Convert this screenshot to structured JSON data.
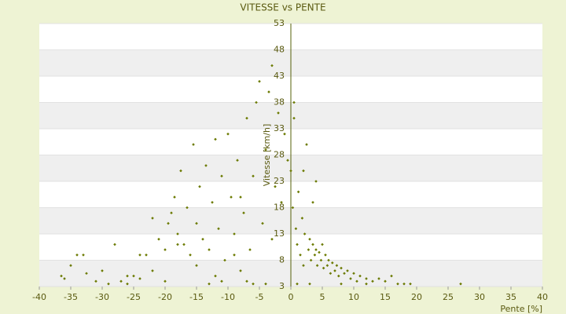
{
  "chart_data": {
    "type": "scatter",
    "title": "VITESSE vs PENTE",
    "x_label": "Pente [%]",
    "y_label": "Vitesse [km/h]",
    "color": "#6b7a00",
    "grid": true,
    "xlim": [
      -40,
      40
    ],
    "xticks": [
      -40,
      -35,
      -30,
      -25,
      -20,
      -15,
      -10,
      -5,
      0,
      5,
      10,
      15,
      20,
      25,
      30,
      35,
      40
    ],
    "ylim": [
      3,
      53
    ],
    "yticks": [
      3,
      8,
      13,
      18,
      23,
      28,
      33,
      38,
      43,
      48,
      53
    ],
    "x": [
      -36.5,
      -36,
      -35,
      -34,
      -33,
      -32.5,
      -31,
      -30,
      -28,
      -27,
      -26,
      -25,
      -24,
      -23,
      -22,
      -21,
      -20,
      -19.5,
      -19,
      -18.5,
      -18,
      -17.5,
      -17,
      -16.5,
      -16,
      -15.5,
      -15,
      -14.5,
      -14,
      -13.5,
      -13,
      -12.5,
      -12,
      -11.5,
      -11,
      -10.5,
      -10,
      -9.5,
      -9,
      -8.5,
      -8,
      -7.5,
      -7,
      -6.5,
      -6,
      -5.5,
      -5,
      -4.5,
      -4,
      -3.5,
      -3,
      -2.5,
      -2,
      -1.5,
      -1,
      -0.5,
      0,
      0.3,
      0.5,
      0.8,
      1,
      1.2,
      1.5,
      1.8,
      2,
      2.2,
      2.5,
      2.8,
      3,
      3.2,
      3.5,
      3.8,
      4,
      4.2,
      4.5,
      4.8,
      5,
      5.2,
      5.5,
      5.8,
      6,
      6.3,
      6.6,
      7,
      7.3,
      7.6,
      8,
      8.5,
      9,
      9.5,
      10,
      10.5,
      11,
      12,
      13,
      14,
      15,
      16,
      17,
      18,
      19,
      27,
      -24,
      -13,
      -11,
      -7,
      -6,
      -4,
      -22,
      -15,
      -18,
      -9,
      -3,
      1,
      3,
      12,
      8,
      4,
      2,
      3.5,
      0.5,
      -8,
      -12,
      -20,
      -26,
      -29
    ],
    "values": [
      5,
      4.5,
      7,
      9,
      9,
      5.5,
      4,
      6,
      11,
      4,
      5,
      5,
      4.5,
      9,
      6,
      12,
      10,
      15,
      17,
      20,
      13,
      25,
      11,
      18,
      9,
      30,
      15,
      22,
      12,
      26,
      10,
      19,
      31,
      14,
      24,
      8,
      32,
      20,
      13,
      27,
      6,
      17,
      35,
      10,
      24,
      38,
      42,
      15,
      29,
      40,
      45,
      22,
      36,
      19,
      32,
      27,
      25,
      18,
      38,
      14,
      11,
      21,
      9,
      16,
      7,
      13,
      30,
      10,
      12,
      8,
      11,
      9,
      10,
      7,
      9.5,
      8,
      11,
      6.5,
      9,
      7,
      8,
      5.5,
      7.5,
      6,
      7,
      5,
      6.5,
      5.5,
      6,
      4.5,
      5.5,
      4,
      5,
      4.5,
      4,
      4.5,
      4,
      5,
      3.5,
      3.5,
      3.5,
      3.5,
      9,
      3.5,
      4,
      4,
      3.5,
      3.5,
      16,
      7,
      11,
      9,
      12,
      3.5,
      3.5,
      3.5,
      3.5,
      23,
      25,
      19,
      35,
      20,
      5,
      4,
      3.5,
      3.5
    ]
  }
}
